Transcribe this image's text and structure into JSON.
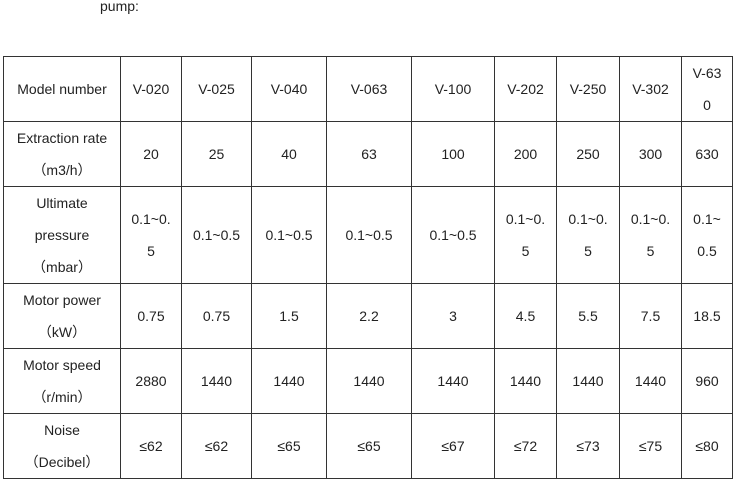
{
  "intro": "pump:",
  "table": {
    "rows": [
      [
        [
          "Model number"
        ],
        "V-020",
        "V-025",
        "V-040",
        "V-063",
        "V-100",
        "V-202",
        "V-250",
        "V-302",
        "V-630"
      ],
      [
        [
          "Extraction rate",
          "（m3/h）"
        ],
        "20",
        "25",
        "40",
        "63",
        "100",
        "200",
        "250",
        "300",
        "630"
      ],
      [
        [
          "Ultimate",
          "pressure",
          "（mbar）"
        ],
        "0.1~0.5",
        "0.1~0.5",
        "0.1~0.5",
        "0.1~0.5",
        "0.1~0.5",
        "0.1~0.5",
        "0.1~0.5",
        "0.1~0.5",
        "0.1~0.5"
      ],
      [
        [
          "Motor power",
          "（kW）"
        ],
        "0.75",
        "0.75",
        "1.5",
        "2.2",
        "3",
        "4.5",
        "5.5",
        "7.5",
        "18.5"
      ],
      [
        [
          "Motor speed",
          "（r/min）"
        ],
        "2880",
        "1440",
        "1440",
        "1440",
        "1440",
        "1440",
        "1440",
        "1440",
        "960"
      ],
      [
        [
          "Noise",
          "（Decibel）"
        ],
        "≤62",
        "≤62",
        "≤65",
        "≤65",
        "≤67",
        "≤72",
        "≤73",
        "≤75",
        "≤80"
      ]
    ]
  }
}
